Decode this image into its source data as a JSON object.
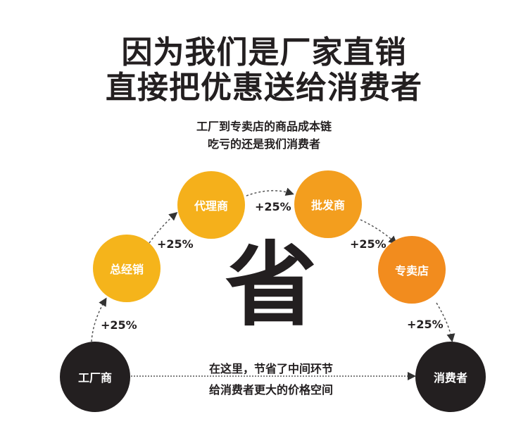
{
  "title": {
    "line1": "因为我们是厂家直销",
    "line2": "直接把优惠送给消费者"
  },
  "subtitle": {
    "line1": "工厂到专卖店的商品成本链",
    "line2": "吃亏的还是我们消费者"
  },
  "nodes": [
    {
      "label": "工厂商",
      "color": "#231f20"
    },
    {
      "label": "总经销",
      "color": "#f5b41b"
    },
    {
      "label": "代理商",
      "color": "#f5b01b"
    },
    {
      "label": "批发商",
      "color": "#f39e1e"
    },
    {
      "label": "专卖店",
      "color": "#f28c1e"
    },
    {
      "label": "消费者",
      "color": "#231f20"
    }
  ],
  "markups": [
    "+25%",
    "+25%",
    "+25%",
    "+25%",
    "+25%"
  ],
  "center_char": "省",
  "note": {
    "line1": "在这里，节省了中间环节",
    "line2": "给消费者更大的价格空间"
  }
}
